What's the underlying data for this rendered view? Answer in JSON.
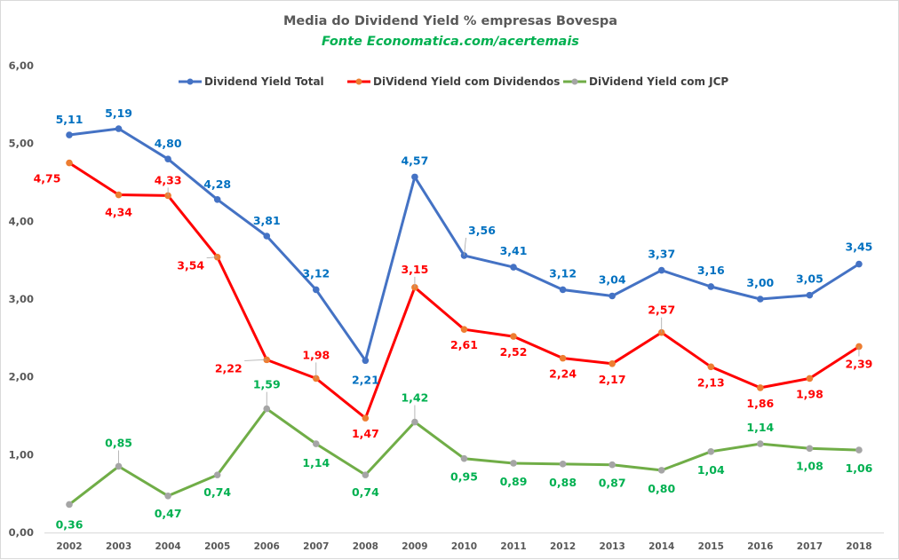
{
  "chart_data": {
    "type": "line",
    "title": "Media do Dividend Yield % empresas Bovespa",
    "subtitle": "Fonte Economatica.com/acertemais",
    "xlabel": "",
    "ylabel": "",
    "categories": [
      "2002",
      "2003",
      "2004",
      "2005",
      "2006",
      "2007",
      "2008",
      "2009",
      "2010",
      "2011",
      "2012",
      "2013",
      "2014",
      "2015",
      "2016",
      "2017",
      "2018"
    ],
    "ylim": [
      0,
      6
    ],
    "yticks": [
      0,
      1,
      2,
      3,
      4,
      5,
      6
    ],
    "ytick_labels": [
      "0,00",
      "1,00",
      "2,00",
      "3,00",
      "4,00",
      "5,00",
      "6,00"
    ],
    "grid": false,
    "legend_position": "top",
    "series": [
      {
        "name": "Dividend Yield Total",
        "line_color": "#4472c4",
        "marker_color": "#4472c4",
        "label_color": "#0070c0",
        "values": [
          5.11,
          5.19,
          4.8,
          4.28,
          3.81,
          3.12,
          2.21,
          4.57,
          3.56,
          3.41,
          3.12,
          3.04,
          3.37,
          3.16,
          3.0,
          3.05,
          3.45
        ],
        "labels": [
          "5,11",
          "5,19",
          "4,80",
          "4,28",
          "3,81",
          "3,12",
          "2,21",
          "4,57",
          "3,56",
          "3,41",
          "3,12",
          "3,04",
          "3,37",
          "3,16",
          "3,00",
          "3,05",
          "3,45"
        ]
      },
      {
        "name": "DiVidend Yield  com Dividendos",
        "line_color": "#ff0000",
        "marker_color": "#ed7d31",
        "label_color": "#ff0000",
        "values": [
          4.75,
          4.34,
          4.33,
          3.54,
          2.22,
          1.98,
          1.47,
          3.15,
          2.61,
          2.52,
          2.24,
          2.17,
          2.57,
          2.13,
          1.86,
          1.98,
          2.39
        ],
        "labels": [
          "4,75",
          "4,34",
          "4,33",
          "3,54",
          "2,22",
          "1,98",
          "1,47",
          "3,15",
          "2,61",
          "2,52",
          "2,24",
          "2,17",
          "2,57",
          "2,13",
          "1,86",
          "1,98",
          "2,39"
        ]
      },
      {
        "name": "DiVidend Yield  com JCP",
        "line_color": "#70ad47",
        "marker_color": "#a5a5a5",
        "label_color": "#00b050",
        "values": [
          0.36,
          0.85,
          0.47,
          0.74,
          1.59,
          1.14,
          0.74,
          1.42,
          0.95,
          0.89,
          0.88,
          0.87,
          0.8,
          1.04,
          1.14,
          1.08,
          1.06
        ],
        "labels": [
          "0,36",
          "0,85",
          "0,47",
          "0,74",
          "1,59",
          "1,14",
          "0,74",
          "1,42",
          "0,95",
          "0,89",
          "0,88",
          "0,87",
          "0,80",
          "1,04",
          "1,14",
          "1,08",
          "1,06"
        ]
      }
    ]
  }
}
